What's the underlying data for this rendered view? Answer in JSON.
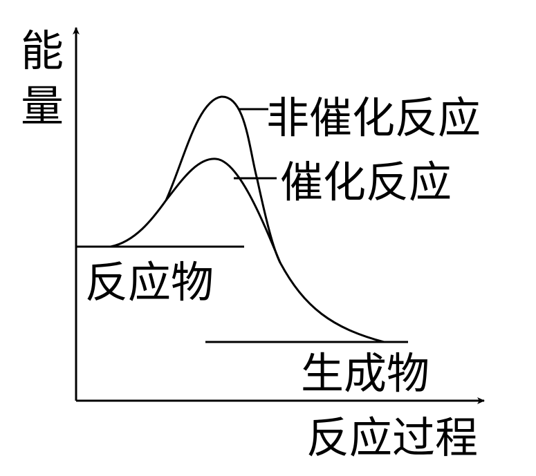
{
  "axes": {
    "y_label_line1": "能",
    "y_label_line2": "量",
    "x_label": "反应过程"
  },
  "curves": {
    "uncatalyzed_label": "非催化反应",
    "catalyzed_label": "催化反应"
  },
  "levels": {
    "reactants_label": "反应物",
    "products_label": "生成物"
  },
  "colors": {
    "line": "#000000",
    "background": "#ffffff"
  }
}
